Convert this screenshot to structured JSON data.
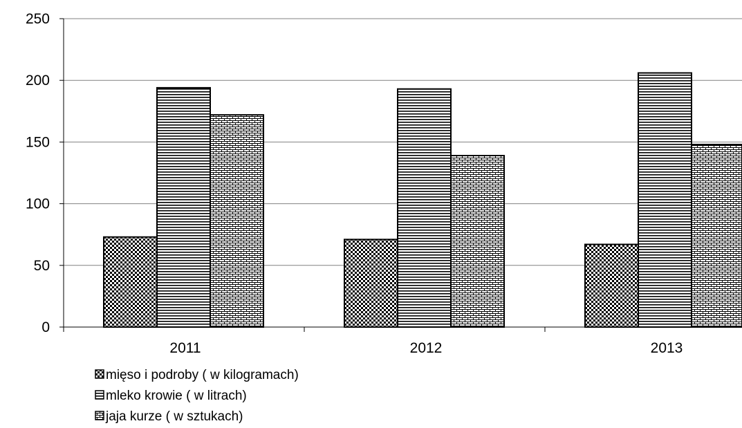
{
  "chart_data": {
    "type": "bar",
    "categories": [
      "2011",
      "2012",
      "2013"
    ],
    "series": [
      {
        "name": "mięso i podroby ( w kilogramach)",
        "values": [
          73,
          71,
          67
        ],
        "pattern": "checker"
      },
      {
        "name": "mleko krowie  ( w litrach)",
        "values": [
          194,
          193,
          206
        ],
        "pattern": "hlines"
      },
      {
        "name": "jaja kurze  ( w sztukach)",
        "values": [
          172,
          139,
          148
        ],
        "pattern": "brick"
      }
    ],
    "ylim": [
      0,
      250
    ],
    "yticks": [
      "0",
      "50",
      "100",
      "150",
      "200",
      "250"
    ],
    "grid": true,
    "legend_position": "bottom-left",
    "colors": {
      "ink": "#000000",
      "bar_fill": "#ffffff",
      "grid": "#808080"
    }
  }
}
